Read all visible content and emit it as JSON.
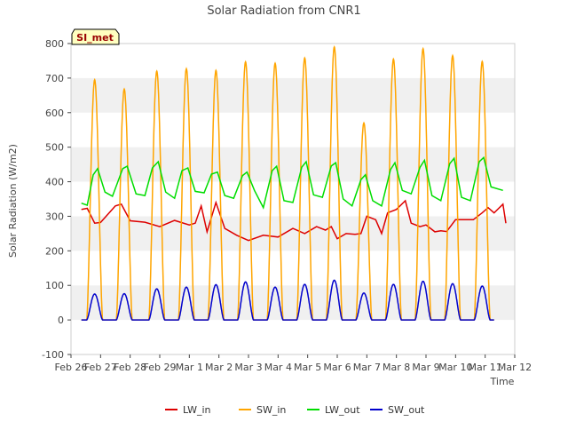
{
  "chart_data": {
    "type": "line",
    "title": "Solar Radiation from CNR1",
    "xlabel": "Time",
    "ylabel": "Solar Radiation (W/m2)",
    "ylim": [
      -100,
      800
    ],
    "yticks": [
      -100,
      0,
      100,
      200,
      300,
      400,
      500,
      600,
      700,
      800
    ],
    "xlim": [
      0,
      15
    ],
    "xticks": [
      {
        "value": 0,
        "label": "Feb 26"
      },
      {
        "value": 1,
        "label": "Feb 27"
      },
      {
        "value": 2,
        "label": "Feb 28"
      },
      {
        "value": 3,
        "label": "Feb 29"
      },
      {
        "value": 4,
        "label": "Mar 1"
      },
      {
        "value": 5,
        "label": "Mar 2"
      },
      {
        "value": 6,
        "label": "Mar 3"
      },
      {
        "value": 7,
        "label": "Mar 4"
      },
      {
        "value": 8,
        "label": "Mar 5"
      },
      {
        "value": 9,
        "label": "Mar 6"
      },
      {
        "value": 10,
        "label": "Mar 7"
      },
      {
        "value": 11,
        "label": "Mar 8"
      },
      {
        "value": 12,
        "label": "Mar 9"
      },
      {
        "value": 13,
        "label": "Mar 10"
      },
      {
        "value": 14,
        "label": "Mar 11"
      },
      {
        "value": 15,
        "label": "Mar 12"
      }
    ],
    "x_units": "days since Feb 26",
    "annotation": "SI_met",
    "grid": "horizontal bands",
    "legend_position": "bottom-center",
    "series": [
      {
        "name": "LW_in",
        "color": "#dd0000",
        "x": [
          0.35,
          0.55,
          0.8,
          1.0,
          1.5,
          1.7,
          2.0,
          2.5,
          3.0,
          3.5,
          4.0,
          4.2,
          4.4,
          4.6,
          4.9,
          5.2,
          5.6,
          6.0,
          6.5,
          7.0,
          7.5,
          7.9,
          8.3,
          8.6,
          8.8,
          9.0,
          9.3,
          9.6,
          9.8,
          10.0,
          10.3,
          10.5,
          10.7,
          11.0,
          11.3,
          11.5,
          11.8,
          12.0,
          12.3,
          12.5,
          12.7,
          13.0,
          13.3,
          13.6,
          13.9,
          14.1,
          14.3,
          14.6,
          14.7
        ],
        "y": [
          320,
          323,
          280,
          282,
          330,
          335,
          287,
          283,
          270,
          288,
          275,
          280,
          330,
          255,
          340,
          265,
          245,
          230,
          245,
          240,
          265,
          250,
          270,
          260,
          270,
          235,
          250,
          248,
          250,
          300,
          290,
          250,
          310,
          320,
          345,
          280,
          270,
          275,
          255,
          258,
          256,
          290,
          290,
          290,
          310,
          325,
          310,
          335,
          280
        ]
      },
      {
        "name": "SW_in",
        "color": "#ffa500",
        "day_peaks": [
          {
            "center": 0.8,
            "peak": 695
          },
          {
            "center": 1.8,
            "peak": 668
          },
          {
            "center": 2.9,
            "peak": 720
          },
          {
            "center": 3.9,
            "peak": 727
          },
          {
            "center": 4.9,
            "peak": 722
          },
          {
            "center": 5.9,
            "peak": 747
          },
          {
            "center": 6.9,
            "peak": 743
          },
          {
            "center": 7.9,
            "peak": 758
          },
          {
            "center": 8.9,
            "peak": 790
          },
          {
            "center": 9.9,
            "peak": 570
          },
          {
            "center": 10.9,
            "peak": 755
          },
          {
            "center": 11.9,
            "peak": 785
          },
          {
            "center": 12.9,
            "peak": 765
          },
          {
            "center": 13.9,
            "peak": 748
          }
        ],
        "night_value": 0
      },
      {
        "name": "LW_out",
        "color": "#00dd00",
        "x": [
          0.35,
          0.55,
          0.75,
          0.9,
          1.15,
          1.4,
          1.75,
          1.9,
          2.2,
          2.5,
          2.75,
          2.95,
          3.2,
          3.5,
          3.75,
          3.95,
          4.2,
          4.5,
          4.75,
          4.95,
          5.2,
          5.5,
          5.8,
          5.95,
          6.2,
          6.5,
          6.8,
          6.95,
          7.2,
          7.5,
          7.8,
          7.95,
          8.2,
          8.5,
          8.8,
          8.95,
          9.2,
          9.5,
          9.8,
          9.95,
          10.2,
          10.5,
          10.8,
          10.95,
          11.2,
          11.5,
          11.8,
          11.95,
          12.2,
          12.5,
          12.8,
          12.95,
          13.2,
          13.5,
          13.8,
          13.95,
          14.2,
          14.6
        ],
        "y": [
          338,
          332,
          420,
          438,
          370,
          358,
          438,
          445,
          365,
          360,
          440,
          458,
          370,
          352,
          432,
          440,
          372,
          368,
          422,
          428,
          360,
          352,
          418,
          428,
          375,
          325,
          432,
          445,
          345,
          340,
          442,
          458,
          362,
          355,
          446,
          455,
          350,
          330,
          406,
          420,
          345,
          330,
          435,
          455,
          375,
          365,
          442,
          462,
          360,
          345,
          452,
          468,
          355,
          345,
          458,
          470,
          385,
          375
        ]
      },
      {
        "name": "SW_out",
        "color": "#0000cc",
        "day_peaks": [
          {
            "center": 0.8,
            "peak": 75
          },
          {
            "center": 1.8,
            "peak": 76
          },
          {
            "center": 2.9,
            "peak": 90
          },
          {
            "center": 3.9,
            "peak": 95
          },
          {
            "center": 4.9,
            "peak": 102
          },
          {
            "center": 5.9,
            "peak": 110
          },
          {
            "center": 6.9,
            "peak": 95
          },
          {
            "center": 7.9,
            "peak": 103
          },
          {
            "center": 8.9,
            "peak": 115
          },
          {
            "center": 9.9,
            "peak": 78
          },
          {
            "center": 10.9,
            "peak": 103
          },
          {
            "center": 11.9,
            "peak": 112
          },
          {
            "center": 12.9,
            "peak": 105
          },
          {
            "center": 13.9,
            "peak": 98
          }
        ],
        "night_value": 0
      }
    ]
  }
}
